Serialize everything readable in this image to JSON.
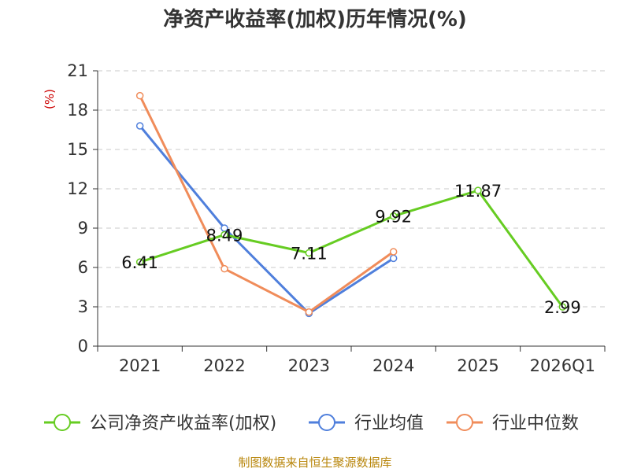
{
  "chart_data": {
    "type": "line",
    "title": "净资产收益率(加权)历年情况(%)",
    "ylabel": "(%)",
    "xlabel": "",
    "categories": [
      "2021",
      "2022",
      "2023",
      "2024",
      "2025",
      "2026Q1"
    ],
    "ylim": [
      0,
      21
    ],
    "yticks": [
      0,
      3,
      6,
      9,
      12,
      15,
      18,
      21
    ],
    "grid": true,
    "legend_position": "bottom",
    "series": [
      {
        "name": "公司净资产收益率(加权)",
        "color": "#66cc22",
        "values": [
          6.41,
          8.49,
          7.11,
          9.92,
          11.87,
          2.99
        ],
        "labels": [
          "6.41",
          "8.49",
          "7.11",
          "9.92",
          "11.87",
          "2.99"
        ]
      },
      {
        "name": "行业均值",
        "color": "#4f7fdc",
        "values": [
          16.8,
          9.0,
          2.5,
          6.7,
          null,
          null
        ]
      },
      {
        "name": "行业中位数",
        "color": "#f08c5a",
        "values": [
          19.1,
          5.9,
          2.6,
          7.2,
          null,
          null
        ]
      }
    ]
  },
  "source": "制图数据来自恒生聚源数据库"
}
